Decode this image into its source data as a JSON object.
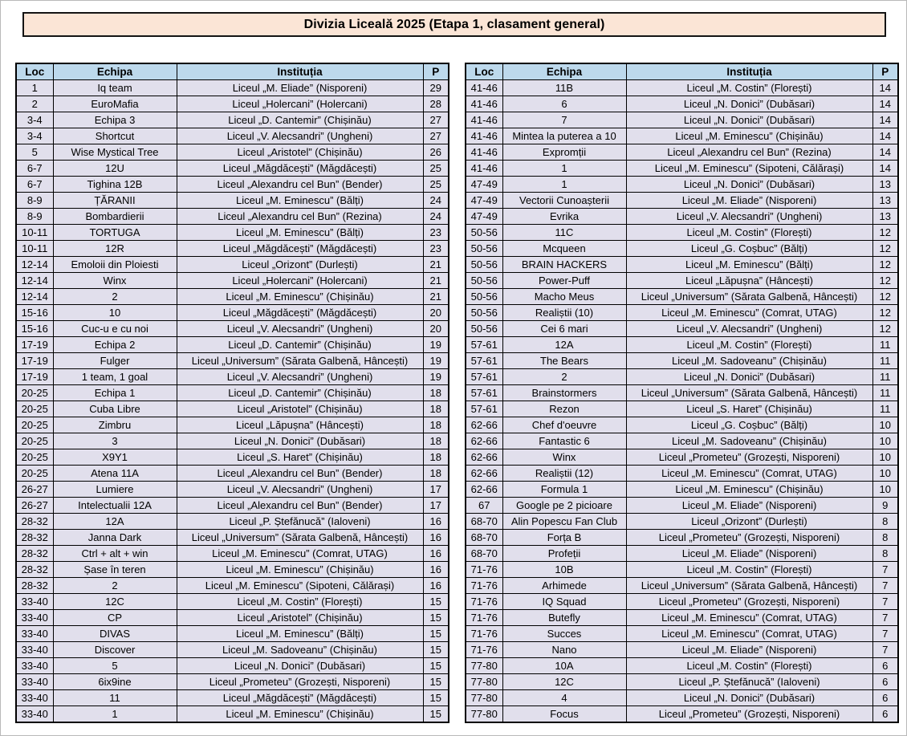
{
  "page": {
    "title": "Divizia Liceală 2025 (Etapa 1, clasament general)"
  },
  "colors": {
    "title_bg": "#FBE5D6",
    "header_bg": "#BDD9EC",
    "row_bg": "#E1DFEC",
    "border": "#000000"
  },
  "columns": [
    "Loc",
    "Echipa",
    "Instituția",
    "P"
  ],
  "tables": [
    {
      "side": "left",
      "rows": [
        [
          "1",
          "Iq team",
          "Liceul „M. Eliade” (Nisporeni)",
          "29"
        ],
        [
          "2",
          "EuroMafia",
          "Liceul „Holercani” (Holercani)",
          "28"
        ],
        [
          "3-4",
          "Echipa 3",
          "Liceul „D. Cantemir” (Chișinău)",
          "27"
        ],
        [
          "3-4",
          "Shortcut",
          "Liceul „V. Alecsandri” (Ungheni)",
          "27"
        ],
        [
          "5",
          "Wise Mystical Tree",
          "Liceul „Aristotel” (Chișinău)",
          "26"
        ],
        [
          "6-7",
          "12U",
          "Liceul „Măgdăcești” (Măgdăcești)",
          "25"
        ],
        [
          "6-7",
          "Tighina 12B",
          "Liceul „Alexandru cel Bun” (Bender)",
          "25"
        ],
        [
          "8-9",
          "ȚĂRANII",
          "Liceul „M. Eminescu” (Bălți)",
          "24"
        ],
        [
          "8-9",
          "Bombardierii",
          "Liceul „Alexandru cel Bun” (Rezina)",
          "24"
        ],
        [
          "10-11",
          "TORTUGA",
          "Liceul „M. Eminescu” (Bălți)",
          "23"
        ],
        [
          "10-11",
          "12R",
          "Liceul „Măgdăcești” (Măgdăcești)",
          "23"
        ],
        [
          "12-14",
          "Emoloii din Ploiesti",
          "Liceul „Orizont” (Durlești)",
          "21"
        ],
        [
          "12-14",
          "Winx",
          "Liceul „Holercani” (Holercani)",
          "21"
        ],
        [
          "12-14",
          "2",
          "Liceul „M. Eminescu” (Chișinău)",
          "21"
        ],
        [
          "15-16",
          "10",
          "Liceul „Măgdăcești” (Măgdăcești)",
          "20"
        ],
        [
          "15-16",
          "Cuc-u e cu noi",
          "Liceul „V. Alecsandri” (Ungheni)",
          "20"
        ],
        [
          "17-19",
          "Echipa 2",
          "Liceul „D. Cantemir” (Chișinău)",
          "19"
        ],
        [
          "17-19",
          "Fulger",
          "Liceul „Universum” (Sărata Galbenă, Hâncești)",
          "19"
        ],
        [
          "17-19",
          "1 team, 1 goal",
          "Liceul „V. Alecsandri” (Ungheni)",
          "19"
        ],
        [
          "20-25",
          "Echipa 1",
          "Liceul „D. Cantemir” (Chișinău)",
          "18"
        ],
        [
          "20-25",
          "Cuba Libre",
          "Liceul „Aristotel” (Chișinău)",
          "18"
        ],
        [
          "20-25",
          "Zimbru",
          "Liceul „Lăpușna” (Hâncești)",
          "18"
        ],
        [
          "20-25",
          "3",
          "Liceul „N. Donici” (Dubăsari)",
          "18"
        ],
        [
          "20-25",
          "X9Y1",
          "Liceul „S. Haret” (Chișinău)",
          "18"
        ],
        [
          "20-25",
          "Atena 11A",
          "Liceul „Alexandru cel Bun” (Bender)",
          "18"
        ],
        [
          "26-27",
          "Lumiere",
          "Liceul „V. Alecsandri” (Ungheni)",
          "17"
        ],
        [
          "26-27",
          "Intelectualii 12A",
          "Liceul „Alexandru cel Bun” (Bender)",
          "17"
        ],
        [
          "28-32",
          "12A",
          "Liceul „P. Ștefănucă” (Ialoveni)",
          "16"
        ],
        [
          "28-32",
          "Janna Dark",
          "Liceul „Universum” (Sărata Galbenă, Hâncești)",
          "16"
        ],
        [
          "28-32",
          "Ctrl + alt + win",
          "Liceul „M. Eminescu” (Comrat, UTAG)",
          "16"
        ],
        [
          "28-32",
          "Șase în teren",
          "Liceul „M. Eminescu” (Chișinău)",
          "16"
        ],
        [
          "28-32",
          "2",
          "Liceul „M. Eminescu” (Sipoteni, Călărași)",
          "16"
        ],
        [
          "33-40",
          "12C",
          "Liceul „M. Costin” (Florești)",
          "15"
        ],
        [
          "33-40",
          "CP",
          "Liceul „Aristotel” (Chișinău)",
          "15"
        ],
        [
          "33-40",
          "DIVAS",
          "Liceul „M. Eminescu” (Bălți)",
          "15"
        ],
        [
          "33-40",
          "Discover",
          "Liceul „M. Sadoveanu” (Chișinău)",
          "15"
        ],
        [
          "33-40",
          "5",
          "Liceul „N. Donici” (Dubăsari)",
          "15"
        ],
        [
          "33-40",
          "6ix9ine",
          "Liceul „Prometeu” (Grozești, Nisporeni)",
          "15"
        ],
        [
          "33-40",
          "11",
          "Liceul „Măgdăcești” (Măgdăcești)",
          "15"
        ],
        [
          "33-40",
          "1",
          "Liceul „M. Eminescu” (Chișinău)",
          "15"
        ]
      ]
    },
    {
      "side": "right",
      "rows": [
        [
          "41-46",
          "11B",
          "Liceul „M. Costin” (Florești)",
          "14"
        ],
        [
          "41-46",
          "6",
          "Liceul „N. Donici” (Dubăsari)",
          "14"
        ],
        [
          "41-46",
          "7",
          "Liceul „N. Donici” (Dubăsari)",
          "14"
        ],
        [
          "41-46",
          "Mintea la puterea a 10",
          "Liceul „M. Eminescu” (Chișinău)",
          "14"
        ],
        [
          "41-46",
          "Expromții",
          "Liceul „Alexandru cel Bun” (Rezina)",
          "14"
        ],
        [
          "41-46",
          "1",
          "Liceul „M. Eminescu” (Sipoteni, Călărași)",
          "14"
        ],
        [
          "47-49",
          "1",
          "Liceul „N. Donici” (Dubăsari)",
          "13"
        ],
        [
          "47-49",
          "Vectorii Cunoașterii",
          "Liceul „M. Eliade” (Nisporeni)",
          "13"
        ],
        [
          "47-49",
          "Evrika",
          "Liceul „V. Alecsandri” (Ungheni)",
          "13"
        ],
        [
          "50-56",
          "11C",
          "Liceul „M. Costin” (Florești)",
          "12"
        ],
        [
          "50-56",
          "Mcqueen",
          "Liceul „G. Coșbuc” (Bălți)",
          "12"
        ],
        [
          "50-56",
          "BRAIN HACKERS",
          "Liceul „M. Eminescu” (Bălți)",
          "12"
        ],
        [
          "50-56",
          "Power-Puff",
          "Liceul „Lăpușna” (Hâncești)",
          "12"
        ],
        [
          "50-56",
          "Macho Meus",
          "Liceul „Universum” (Sărata Galbenă, Hâncești)",
          "12"
        ],
        [
          "50-56",
          "Realiștii (10)",
          "Liceul „M. Eminescu” (Comrat, UTAG)",
          "12"
        ],
        [
          "50-56",
          "Cei 6 mari",
          "Liceul „V. Alecsandri” (Ungheni)",
          "12"
        ],
        [
          "57-61",
          "12A",
          "Liceul „M. Costin” (Florești)",
          "11"
        ],
        [
          "57-61",
          "The Bears",
          "Liceul „M. Sadoveanu” (Chișinău)",
          "11"
        ],
        [
          "57-61",
          "2",
          "Liceul „N. Donici” (Dubăsari)",
          "11"
        ],
        [
          "57-61",
          "Brainstormers",
          "Liceul „Universum” (Sărata Galbenă, Hâncești)",
          "11"
        ],
        [
          "57-61",
          "Rezon",
          "Liceul „S. Haret” (Chișinău)",
          "11"
        ],
        [
          "62-66",
          "Chef d'oeuvre",
          "Liceul „G. Coșbuc” (Bălți)",
          "10"
        ],
        [
          "62-66",
          "Fantastic 6",
          "Liceul „M. Sadoveanu” (Chișinău)",
          "10"
        ],
        [
          "62-66",
          "Winx",
          "Liceul „Prometeu” (Grozești, Nisporeni)",
          "10"
        ],
        [
          "62-66",
          "Realiștii (12)",
          "Liceul „M. Eminescu” (Comrat, UTAG)",
          "10"
        ],
        [
          "62-66",
          "Formula 1",
          "Liceul „M. Eminescu” (Chișinău)",
          "10"
        ],
        [
          "67",
          "Google pe 2 picioare",
          "Liceul „M. Eliade” (Nisporeni)",
          "9"
        ],
        [
          "68-70",
          "Alin Popescu Fan Club",
          "Liceul „Orizont” (Durlești)",
          "8"
        ],
        [
          "68-70",
          "Forța B",
          "Liceul „Prometeu” (Grozești, Nisporeni)",
          "8"
        ],
        [
          "68-70",
          "Profeții",
          "Liceul „M. Eliade” (Nisporeni)",
          "8"
        ],
        [
          "71-76",
          "10B",
          "Liceul „M. Costin” (Florești)",
          "7"
        ],
        [
          "71-76",
          "Arhimede",
          "Liceul „Universum” (Sărata Galbenă, Hâncești)",
          "7"
        ],
        [
          "71-76",
          "IQ Squad",
          "Liceul „Prometeu” (Grozești, Nisporeni)",
          "7"
        ],
        [
          "71-76",
          "Butefly",
          "Liceul „M. Eminescu” (Comrat, UTAG)",
          "7"
        ],
        [
          "71-76",
          "Succes",
          "Liceul „M. Eminescu” (Comrat, UTAG)",
          "7"
        ],
        [
          "71-76",
          "Nano",
          "Liceul „M. Eliade” (Nisporeni)",
          "7"
        ],
        [
          "77-80",
          "10A",
          "Liceul „M. Costin” (Florești)",
          "6"
        ],
        [
          "77-80",
          "12C",
          "Liceul „P. Ștefănucă” (Ialoveni)",
          "6"
        ],
        [
          "77-80",
          "4",
          "Liceul „N. Donici” (Dubăsari)",
          "6"
        ],
        [
          "77-80",
          "Focus",
          "Liceul „Prometeu” (Grozești, Nisporeni)",
          "6"
        ]
      ]
    }
  ]
}
